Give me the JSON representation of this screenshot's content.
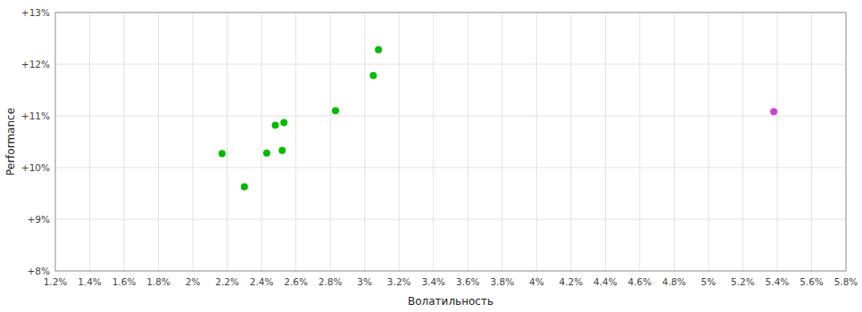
{
  "chart_data": {
    "type": "scatter",
    "x_label": "Волатильность",
    "y_label": "Performance",
    "xlim": [
      0.012,
      0.058
    ],
    "ylim": [
      0.08,
      0.13
    ],
    "xticks": [
      {
        "value": 0.012,
        "label": "1.2%"
      },
      {
        "value": 0.014,
        "label": "1.4%"
      },
      {
        "value": 0.016,
        "label": "1.6%"
      },
      {
        "value": 0.018,
        "label": "1.8%"
      },
      {
        "value": 0.02,
        "label": "2%"
      },
      {
        "value": 0.022,
        "label": "2.2%"
      },
      {
        "value": 0.024,
        "label": "2.4%"
      },
      {
        "value": 0.026,
        "label": "2.6%"
      },
      {
        "value": 0.028,
        "label": "2.8%"
      },
      {
        "value": 0.03,
        "label": "3%"
      },
      {
        "value": 0.032,
        "label": "3.2%"
      },
      {
        "value": 0.034,
        "label": "3.4%"
      },
      {
        "value": 0.036,
        "label": "3.6%"
      },
      {
        "value": 0.038,
        "label": "3.8%"
      },
      {
        "value": 0.04,
        "label": "4%"
      },
      {
        "value": 0.042,
        "label": "4.2%"
      },
      {
        "value": 0.044,
        "label": "4.4%"
      },
      {
        "value": 0.046,
        "label": "4.6%"
      },
      {
        "value": 0.048,
        "label": "4.8%"
      },
      {
        "value": 0.05,
        "label": "5%"
      },
      {
        "value": 0.052,
        "label": "5.2%"
      },
      {
        "value": 0.054,
        "label": "5.4%"
      },
      {
        "value": 0.056,
        "label": "5.6%"
      },
      {
        "value": 0.058,
        "label": "5.8%"
      }
    ],
    "yticks": [
      {
        "value": 0.08,
        "label": "+8%"
      },
      {
        "value": 0.09,
        "label": "+9%"
      },
      {
        "value": 0.1,
        "label": "+10%"
      },
      {
        "value": 0.11,
        "label": "+11%"
      },
      {
        "value": 0.12,
        "label": "+12%"
      },
      {
        "value": 0.13,
        "label": "+13%"
      }
    ],
    "grid": true,
    "series": [
      {
        "color": "#00bb00",
        "x": [
          0.0217,
          0.023,
          0.0243,
          0.0252,
          0.0248,
          0.0253,
          0.0283,
          0.0305,
          0.0308
        ],
        "values": [
          0.1027,
          0.0963,
          0.1028,
          0.1033,
          0.1082,
          0.1087,
          0.111,
          0.1178,
          0.1228
        ]
      },
      {
        "color": "#cc44cc",
        "x": [
          0.0538
        ],
        "values": [
          0.1108
        ]
      }
    ]
  }
}
